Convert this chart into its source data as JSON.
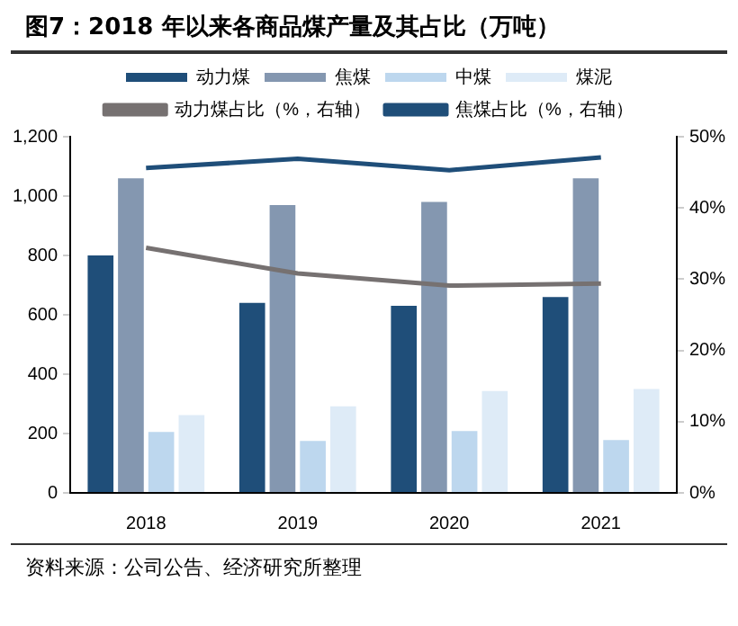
{
  "chart_data": {
    "type": "bar",
    "title": "图7：2018 年以来各商品煤产量及其占比（万吨）",
    "categories": [
      "2018",
      "2019",
      "2020",
      "2021"
    ],
    "series": [
      {
        "name": "动力煤",
        "color": "#1f4e79",
        "values": [
          800,
          640,
          630,
          660
        ]
      },
      {
        "name": "焦煤",
        "color": "#8497b0",
        "values": [
          1060,
          970,
          980,
          1060
        ]
      },
      {
        "name": "中煤",
        "color": "#bdd7ee",
        "values": [
          205,
          175,
          208,
          178
        ]
      },
      {
        "name": "煤泥",
        "color": "#deebf7",
        "values": [
          262,
          292,
          343,
          350
        ]
      },
      {
        "name": "动力煤占比（%，右轴）",
        "type": "line",
        "axis": "y2",
        "color": "#767171",
        "values": [
          34.4,
          30.8,
          29.1,
          29.4
        ]
      },
      {
        "name": "焦煤占比（%，右轴）",
        "type": "line",
        "axis": "y2",
        "color": "#1f4e79",
        "values": [
          45.6,
          46.9,
          45.3,
          47.1
        ]
      }
    ],
    "ylim": [
      0,
      1200
    ],
    "yticks": [
      0,
      200,
      400,
      600,
      800,
      {
        "value": 1000,
        "label": "1,000"
      },
      {
        "value": 1200,
        "label": "1,200"
      }
    ],
    "y2lim": [
      0,
      50
    ],
    "y2ticks": [
      {
        "value": 0,
        "label": "0%"
      },
      {
        "value": 10,
        "label": "10%"
      },
      {
        "value": 20,
        "label": "20%"
      },
      {
        "value": 30,
        "label": "30%"
      },
      {
        "value": 40,
        "label": "40%"
      },
      {
        "value": 50,
        "label": "50%"
      }
    ],
    "grid": false,
    "legend": "top",
    "marker": "none",
    "line_style": "solid",
    "annotations": [
      "资料来源：公司公告、经济研究所整理"
    ]
  }
}
